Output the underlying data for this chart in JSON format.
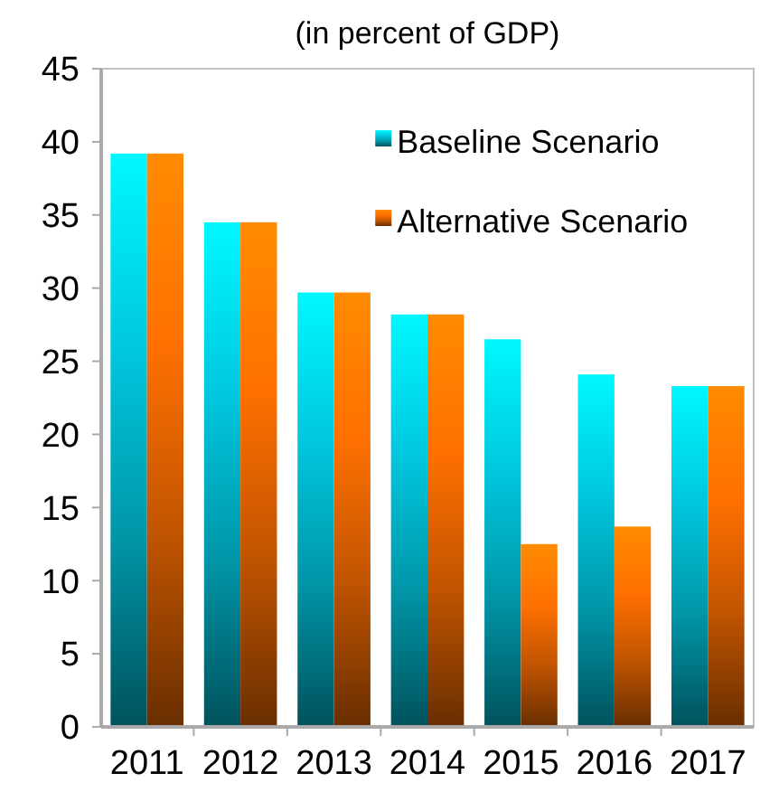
{
  "chart_data": {
    "type": "bar",
    "subtitle": "(in percent of GDP)",
    "categories": [
      "2011",
      "2012",
      "2013",
      "2014",
      "2015",
      "2016",
      "2017"
    ],
    "series": [
      {
        "name": "Baseline Scenario",
        "color": "#00c8e0",
        "values": [
          39.2,
          34.5,
          29.7,
          28.2,
          26.5,
          24.1,
          23.3
        ]
      },
      {
        "name": "Alternative Scenario",
        "color": "#ff7000",
        "values": [
          39.2,
          34.5,
          29.7,
          28.2,
          12.5,
          13.7,
          23.3
        ]
      }
    ],
    "ylim": [
      0,
      45
    ],
    "yticks": [
      0,
      5,
      10,
      15,
      20,
      25,
      30,
      35,
      40,
      45
    ],
    "grid": false,
    "legend": "top right"
  }
}
